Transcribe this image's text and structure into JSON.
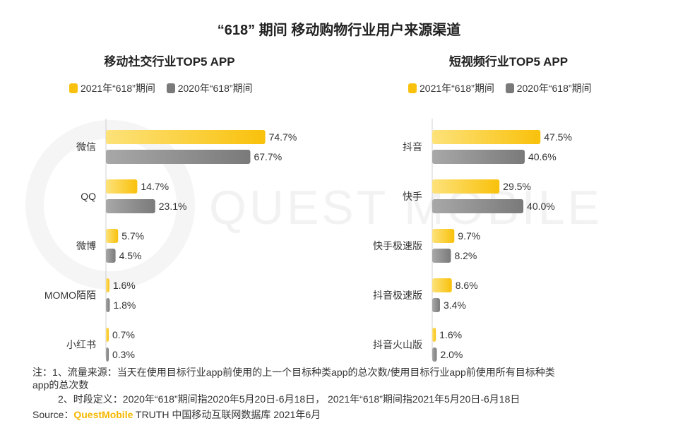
{
  "title": "“618” 期间 移动购物行业用户来源渠道",
  "colors": {
    "y2021": "#f9c10b",
    "y2021_light": "#fde27a",
    "y2020": "#7a7a7a",
    "y2020_light": "#a8a8a8"
  },
  "legend": {
    "y2021": "2021年“618”期间",
    "y2020": "2020年“618”期间"
  },
  "chart_data": [
    {
      "type": "bar",
      "orientation": "horizontal",
      "title": "移动社交行业TOP5 APP",
      "categories": [
        "微信",
        "QQ",
        "微博",
        "MOMO陌陌",
        "小红书"
      ],
      "series": [
        {
          "name": "2021年“618”期间",
          "values": [
            74.7,
            14.7,
            5.7,
            1.6,
            0.7
          ],
          "labels": [
            "74.7%",
            "14.7%",
            "5.7%",
            "1.6%",
            "0.7%"
          ]
        },
        {
          "name": "2020年“618”期间",
          "values": [
            67.7,
            23.1,
            4.5,
            1.8,
            0.3
          ],
          "labels": [
            "67.7%",
            "23.1%",
            "4.5%",
            "1.8%",
            "0.3%"
          ]
        }
      ],
      "xlim": [
        0,
        100
      ],
      "unit": "%"
    },
    {
      "type": "bar",
      "orientation": "horizontal",
      "title": "短视频行业TOP5 APP",
      "categories": [
        "抖音",
        "快手",
        "快手极速版",
        "抖音极速版",
        "抖音火山版"
      ],
      "series": [
        {
          "name": "2021年“618”期间",
          "values": [
            47.5,
            29.5,
            9.7,
            8.6,
            1.6
          ],
          "labels": [
            "47.5%",
            "29.5%",
            "9.7%",
            "8.6%",
            "1.6%"
          ]
        },
        {
          "name": "2020年“618”期间",
          "values": [
            40.6,
            40.0,
            8.2,
            3.4,
            2.0
          ],
          "labels": [
            "40.6%",
            "40.0%",
            "8.2%",
            "3.4%",
            "2.0%"
          ]
        }
      ],
      "xlim": [
        0,
        62
      ],
      "unit": "%"
    }
  ],
  "watermark": "QUEST MOBILE",
  "notes": {
    "line1": "注：1、流量来源：当天在使用目标行业app前使用的上一个目标种类app的总次数/使用目标行业app前使用所有目标种类",
    "line2": "app的总次数",
    "line3": "2、时段定义：2020年“618”期间指2020年5月20日-6月18日， 2021年“618”期间指2021年5月20日-6月18日",
    "source_prefix": "Source：",
    "source_brand": "QuestMobile",
    "source_rest": " TRUTH 中国移动互联网数据库 2021年6月"
  }
}
